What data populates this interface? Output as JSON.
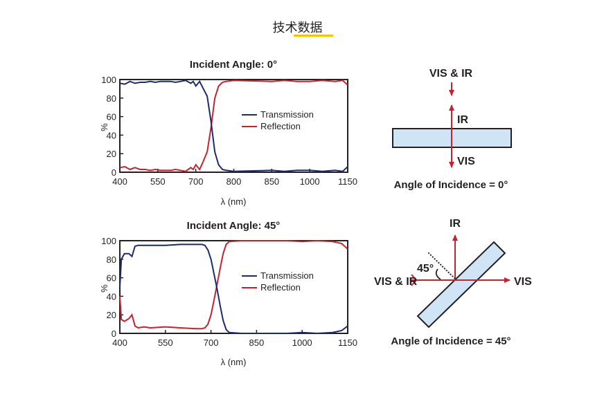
{
  "page": {
    "title": "技术数据"
  },
  "colors": {
    "transmission": "#1b2a6b",
    "reflection": "#c8202f",
    "frame": "#231f20",
    "plate": "#cfe5f5",
    "title_underline": "#f5c400"
  },
  "chart_data": [
    {
      "type": "line",
      "title": "Incident Angle: 0°",
      "xlabel": "λ (nm)",
      "ylabel": "%",
      "xlim": [
        400,
        1150
      ],
      "ylim": [
        0,
        100
      ],
      "xticks": [
        400,
        550,
        700,
        800,
        850,
        1000,
        1150
      ],
      "yticks": [
        0,
        20,
        40,
        60,
        80,
        100
      ],
      "legend_position": "center-right",
      "series": [
        {
          "name": "Transmission",
          "x": [
            400,
            420,
            440,
            460,
            480,
            500,
            520,
            540,
            560,
            580,
            600,
            620,
            640,
            660,
            680,
            690,
            700,
            710,
            720,
            730,
            740,
            750,
            760,
            770,
            780,
            800,
            850,
            900,
            950,
            1000,
            1050,
            1100,
            1130,
            1150
          ],
          "y": [
            96,
            95,
            98,
            96,
            97,
            97,
            98,
            97,
            98,
            98,
            98,
            97,
            98,
            99,
            96,
            98,
            93,
            98,
            90,
            82,
            55,
            22,
            8,
            3,
            2,
            1,
            2,
            1,
            2,
            2,
            1,
            2,
            1,
            6
          ]
        },
        {
          "name": "Reflection",
          "x": [
            400,
            420,
            440,
            460,
            480,
            500,
            520,
            540,
            560,
            580,
            600,
            620,
            640,
            660,
            680,
            690,
            700,
            710,
            720,
            730,
            740,
            750,
            760,
            770,
            780,
            800,
            850,
            900,
            950,
            1000,
            1050,
            1100,
            1130,
            1150
          ],
          "y": [
            5,
            6,
            3,
            5,
            3,
            3,
            2,
            3,
            2,
            2,
            2,
            3,
            2,
            1,
            5,
            3,
            8,
            3,
            12,
            22,
            48,
            80,
            93,
            97,
            98,
            99,
            98,
            99,
            98,
            98,
            99,
            98,
            99,
            94
          ]
        }
      ]
    },
    {
      "type": "line",
      "title": "Incident Angle: 45°",
      "xlabel": "λ (nm)",
      "ylabel": "%",
      "xlim": [
        400,
        1150
      ],
      "ylim": [
        0,
        100
      ],
      "xticks": [
        400,
        550,
        700,
        850,
        1000,
        1150
      ],
      "yticks": [
        0,
        20,
        40,
        60,
        80,
        100
      ],
      "legend_position": "center-right",
      "series": [
        {
          "name": "Transmission",
          "x": [
            400,
            405,
            415,
            430,
            440,
            450,
            460,
            480,
            500,
            550,
            600,
            650,
            670,
            680,
            690,
            700,
            710,
            720,
            730,
            740,
            750,
            760,
            800,
            850,
            900,
            950,
            1000,
            1050,
            1100,
            1130,
            1150
          ],
          "y": [
            50,
            80,
            86,
            86,
            83,
            94,
            95,
            95,
            95,
            95,
            96,
            96,
            96,
            95,
            90,
            80,
            64,
            48,
            30,
            14,
            4,
            1,
            0,
            0,
            0,
            0,
            1,
            0,
            1,
            3,
            8
          ]
        },
        {
          "name": "Reflection",
          "x": [
            400,
            405,
            415,
            430,
            440,
            450,
            460,
            480,
            500,
            550,
            600,
            650,
            670,
            680,
            690,
            700,
            710,
            720,
            730,
            740,
            750,
            760,
            800,
            850,
            900,
            950,
            1000,
            1050,
            1100,
            1130,
            1150
          ],
          "y": [
            40,
            15,
            13,
            16,
            20,
            8,
            6,
            7,
            6,
            7,
            6,
            5,
            5,
            6,
            10,
            20,
            36,
            53,
            70,
            86,
            96,
            99,
            100,
            100,
            100,
            100,
            99,
            100,
            99,
            97,
            91
          ]
        }
      ]
    }
  ],
  "diagrams": {
    "top": {
      "input_label": "VIS & IR",
      "reflected_label": "IR",
      "transmitted_label": "VIS",
      "caption": "Angle of Incidence = 0°"
    },
    "bottom": {
      "reflected_label": "IR",
      "input_label": "VIS & IR",
      "transmitted_label": "VIS",
      "angle_label": "45°",
      "caption": "Angle of Incidence = 45°"
    }
  }
}
